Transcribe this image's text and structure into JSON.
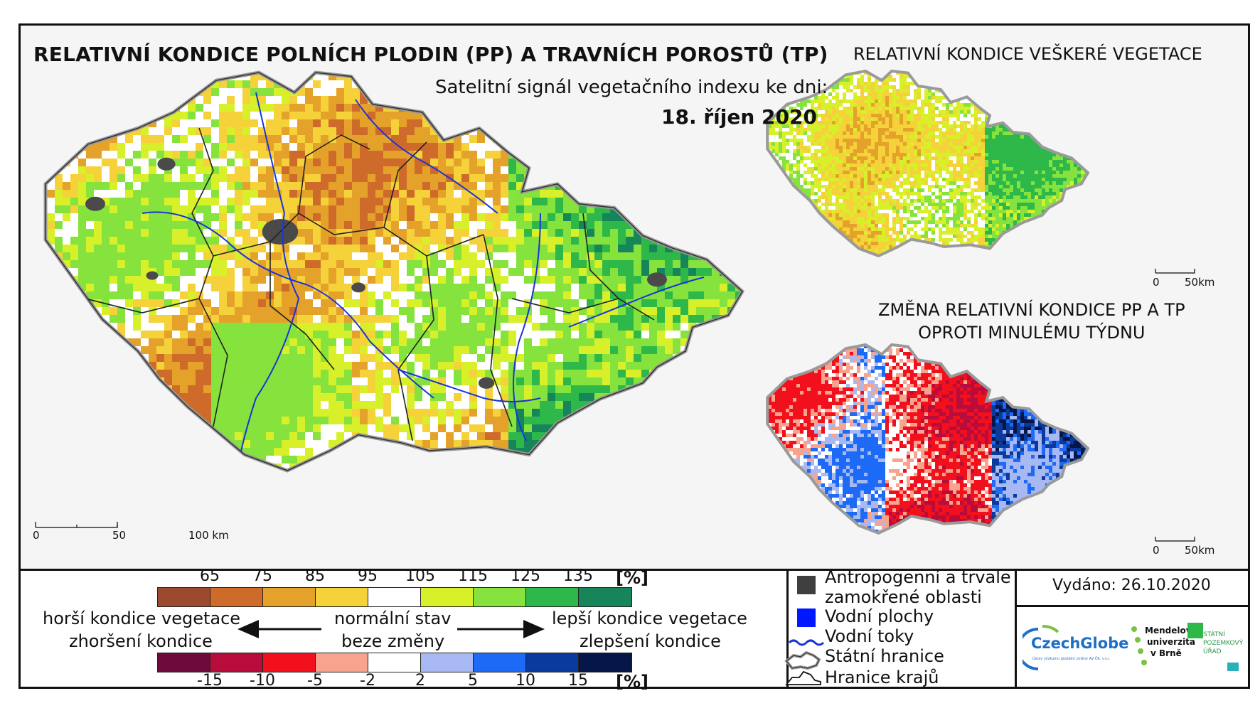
{
  "main_title": "RELATIVNÍ KONDICE POLNÍCH PLODIN (PP) A TRAVNÍCH POROSTŮ (TP)",
  "subtitle": "Satelitní signál vegetačního indexu ke dni:",
  "date": "18. říjen 2020",
  "side_map_1_title": "RELATIVNÍ KONDICE VEŠKERÉ VEGETACE",
  "side_map_2_title_line1": "ZMĚNA RELATIVNÍ KONDICE PP A TP",
  "side_map_2_title_line2": "OPROTI MINULÉMU TÝDNU",
  "main_scale": {
    "t0": "0",
    "t1": "50",
    "t2": "100 km"
  },
  "side_scale": {
    "t0": "0",
    "t1": "50km"
  },
  "condition_scale": {
    "ticks": [
      "65",
      "75",
      "85",
      "95",
      "105",
      "115",
      "125",
      "135"
    ],
    "unit": "[%]",
    "colors": [
      "#9c4a2f",
      "#cf6b2a",
      "#e5a22a",
      "#f5d13a",
      "#ffffff",
      "#d8f02a",
      "#86e23c",
      "#2fb84a",
      "#16865a"
    ]
  },
  "change_scale": {
    "ticks": [
      "-15",
      "-10",
      "-5",
      "-2",
      "2",
      "5",
      "10",
      "15"
    ],
    "unit": "[%]",
    "colors": [
      "#6e0b3a",
      "#b80c3c",
      "#f2101d",
      "#f7a38e",
      "#ffffff",
      "#a8b8f2",
      "#1c6af5",
      "#0a3a9c",
      "#061648"
    ]
  },
  "labels": {
    "worse_1": "horší kondice vegetace",
    "worse_2": "zhoršení kondice",
    "normal_1": "normální stav",
    "normal_2": "beze změny",
    "better_1": "lepší kondice vegetace",
    "better_2": "zlepšení kondice"
  },
  "map_legend": {
    "anthropogenic": "Antropogenní a trvale",
    "anthropogenic_2": "zamokřené oblasti",
    "water_bodies": "Vodní plochy",
    "rivers": "Vodní toky",
    "state_border": "Státní hranice",
    "region_border": "Hranice krajů",
    "colors": {
      "anthropogenic": "#3f3f3f",
      "water_bodies": "#0018ff",
      "rivers": "#1a35d6"
    }
  },
  "issued": "Vydáno: 26.10.2020",
  "logos": {
    "czechglobe": "CzechGlobe",
    "czechglobe_sub": "Ústav výzkumu globální změny AV ČR, v.v.i.",
    "mendel_1": "Mendelova",
    "mendel_2": "univerzita",
    "mendel_3": "v Brně",
    "spu_1": "STÁTNÍ",
    "spu_2": "POZEMKOVÝ",
    "spu_3": "ÚŘAD"
  }
}
